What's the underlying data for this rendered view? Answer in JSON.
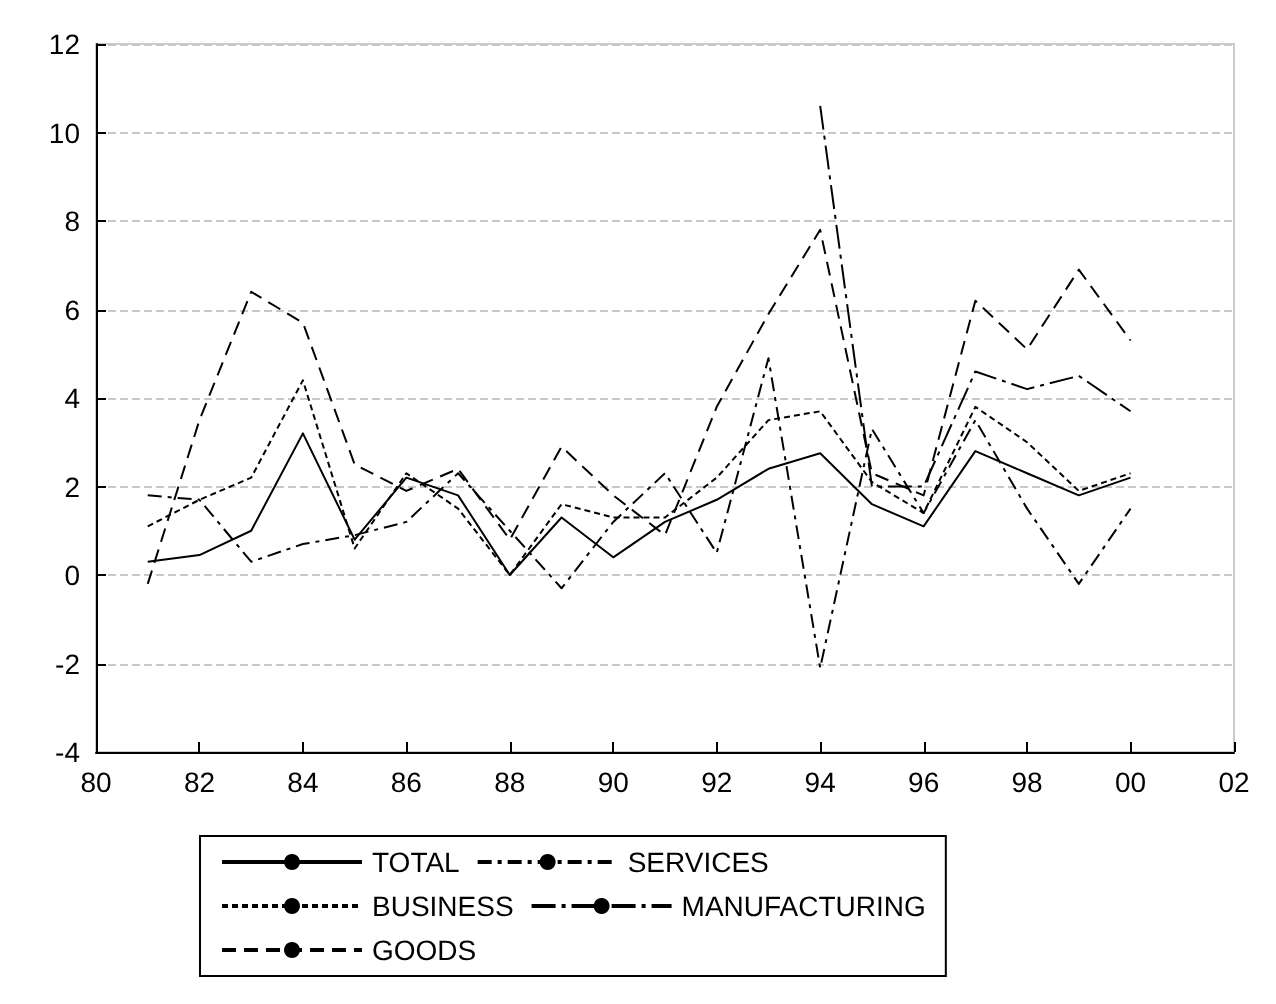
{
  "chart_data": {
    "type": "line",
    "x": [
      1981,
      1982,
      1983,
      1984,
      1985,
      1986,
      1987,
      1988,
      1989,
      1990,
      1991,
      1992,
      1993,
      1994,
      1995,
      1996,
      1997,
      1998,
      1999,
      2000
    ],
    "series": [
      {
        "name": "TOTAL",
        "color": "#000000",
        "line_style": "solid",
        "values": [
          0.3,
          0.45,
          1.0,
          3.2,
          0.8,
          2.2,
          1.8,
          0.0,
          1.3,
          0.4,
          1.2,
          1.7,
          2.4,
          2.75,
          1.6,
          1.1,
          2.8,
          2.3,
          1.8,
          2.2
        ]
      },
      {
        "name": "SERVICES",
        "color": "#000000",
        "line_style": "dashdot",
        "values": [
          1.8,
          1.7,
          0.3,
          0.7,
          0.9,
          1.2,
          2.3,
          1.0,
          -0.3,
          1.2,
          2.3,
          0.5,
          4.9,
          -2.1,
          3.3,
          1.4,
          3.5,
          1.5,
          -0.2,
          1.5
        ]
      },
      {
        "name": "BUSINESS",
        "color": "#000000",
        "line_style": "dotted",
        "values": [
          1.1,
          1.7,
          2.2,
          4.4,
          0.6,
          2.3,
          1.5,
          0.0,
          1.6,
          1.3,
          1.3,
          2.2,
          3.5,
          3.7,
          2.1,
          1.4,
          3.8,
          3.0,
          1.9,
          2.3
        ]
      },
      {
        "name": "MANUFACTURING",
        "color": "#000000",
        "line_style": "longdashdot",
        "values": [
          null,
          null,
          null,
          null,
          null,
          null,
          null,
          null,
          null,
          null,
          null,
          null,
          null,
          10.6,
          2.0,
          2.0,
          4.6,
          4.2,
          4.5,
          3.7
        ]
      },
      {
        "name": "GOODS",
        "color": "#000000",
        "line_style": "dashed",
        "values": [
          -0.2,
          3.5,
          6.4,
          5.7,
          2.5,
          1.9,
          2.4,
          0.8,
          2.9,
          1.8,
          0.9,
          3.8,
          5.9,
          7.8,
          2.3,
          1.8,
          6.2,
          5.1,
          6.9,
          5.3
        ]
      }
    ],
    "xlim": [
      1980,
      2002
    ],
    "xticks": [
      {
        "value": 1980,
        "label": "80"
      },
      {
        "value": 1982,
        "label": "82"
      },
      {
        "value": 1984,
        "label": "84"
      },
      {
        "value": 1986,
        "label": "86"
      },
      {
        "value": 1988,
        "label": "88"
      },
      {
        "value": 1990,
        "label": "90"
      },
      {
        "value": 1992,
        "label": "92"
      },
      {
        "value": 1994,
        "label": "94"
      },
      {
        "value": 1996,
        "label": "96"
      },
      {
        "value": 1998,
        "label": "98"
      },
      {
        "value": 2000,
        "label": "00"
      },
      {
        "value": 2002,
        "label": "02"
      }
    ],
    "ylim": [
      -4,
      12
    ],
    "yticks": [
      -4,
      -2,
      0,
      2,
      4,
      6,
      8,
      10,
      12
    ],
    "grid": "y",
    "legend": "bottom",
    "marker": "none"
  }
}
